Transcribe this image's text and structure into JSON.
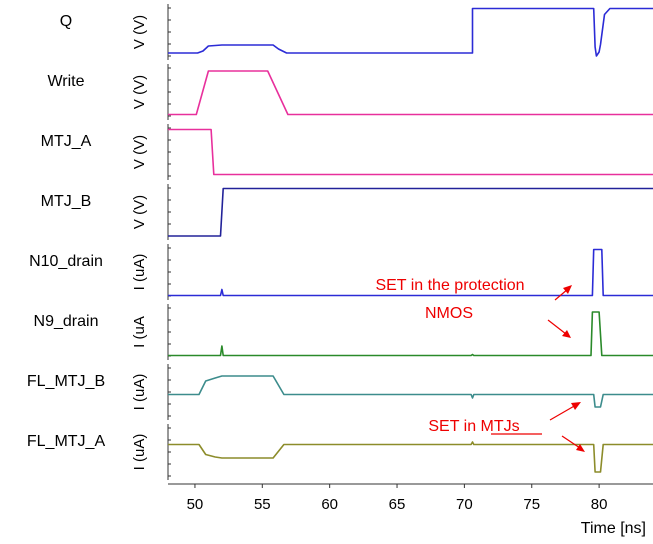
{
  "chart_data": {
    "type": "line",
    "xlabel": "Time [ns]",
    "x_unit_range": [
      48,
      84
    ],
    "x_ticks": [
      50,
      55,
      60,
      65,
      70,
      75,
      80
    ],
    "grid": false,
    "signals": [
      {
        "name": "Q",
        "unit": "V (V)",
        "color": "#2b2bd6",
        "points": [
          [
            48,
            0.08
          ],
          [
            50.2,
            0.08
          ],
          [
            50.6,
            0.12
          ],
          [
            51.0,
            0.22
          ],
          [
            51.5,
            0.23
          ],
          [
            52.0,
            0.24
          ],
          [
            55.8,
            0.24
          ],
          [
            56.2,
            0.16
          ],
          [
            56.8,
            0.08
          ],
          [
            70.6,
            0.08
          ],
          [
            70.6,
            0.97
          ],
          [
            79.6,
            0.97
          ],
          [
            79.7,
            0.2
          ],
          [
            79.8,
            0.02
          ],
          [
            80.0,
            0.1
          ],
          [
            80.1,
            0.25
          ],
          [
            80.4,
            0.85
          ],
          [
            80.8,
            0.97
          ],
          [
            84,
            0.97
          ]
        ]
      },
      {
        "name": "Write",
        "unit": "V (V)",
        "color": "#e8309c",
        "points": [
          [
            48,
            0.05
          ],
          [
            50.1,
            0.05
          ],
          [
            51.0,
            0.92
          ],
          [
            55.4,
            0.92
          ],
          [
            56.9,
            0.05
          ],
          [
            84,
            0.05
          ]
        ]
      },
      {
        "name": "MTJ_A",
        "unit": "V (V)",
        "color": "#e8309c",
        "points": [
          [
            48,
            0.95
          ],
          [
            51.2,
            0.95
          ],
          [
            51.4,
            0.05
          ],
          [
            84,
            0.05
          ]
        ]
      },
      {
        "name": "MTJ_B",
        "unit": "V (V)",
        "color": "#222299",
        "points": [
          [
            48,
            0.02
          ],
          [
            51.9,
            0.02
          ],
          [
            52.1,
            0.97
          ],
          [
            84,
            0.97
          ]
        ]
      },
      {
        "name": "N10_drain",
        "unit": "I (uA)",
        "color": "#2b2bd6",
        "points": [
          [
            48,
            0.03
          ],
          [
            51.9,
            0.03
          ],
          [
            52.0,
            0.15
          ],
          [
            52.1,
            0.03
          ],
          [
            79.5,
            0.03
          ],
          [
            79.6,
            0.95
          ],
          [
            80.2,
            0.95
          ],
          [
            80.3,
            0.03
          ],
          [
            84,
            0.03
          ]
        ]
      },
      {
        "name": "N9_drain",
        "unit": "I (uA",
        "color": "#2a8a2a",
        "points": [
          [
            48,
            0.03
          ],
          [
            51.9,
            0.03
          ],
          [
            52.0,
            0.22
          ],
          [
            52.1,
            0.03
          ],
          [
            70.5,
            0.03
          ],
          [
            70.6,
            0.05
          ],
          [
            70.7,
            0.03
          ],
          [
            79.4,
            0.03
          ],
          [
            79.5,
            0.9
          ],
          [
            80.0,
            0.9
          ],
          [
            80.2,
            0.03
          ],
          [
            84,
            0.03
          ]
        ]
      },
      {
        "name": "FL_MTJ_B",
        "unit": "I (uA)",
        "color": "#3c8c8c",
        "points": [
          [
            48,
            0.45
          ],
          [
            50.3,
            0.45
          ],
          [
            50.8,
            0.72
          ],
          [
            51.5,
            0.78
          ],
          [
            52.0,
            0.82
          ],
          [
            55.8,
            0.82
          ],
          [
            56.6,
            0.45
          ],
          [
            70.5,
            0.45
          ],
          [
            70.6,
            0.38
          ],
          [
            70.7,
            0.45
          ],
          [
            79.6,
            0.45
          ],
          [
            79.7,
            0.2
          ],
          [
            80.1,
            0.2
          ],
          [
            80.3,
            0.45
          ],
          [
            84,
            0.45
          ]
        ]
      },
      {
        "name": "FL_MTJ_A",
        "unit": "I (uA)",
        "color": "#8c8c2a",
        "points": [
          [
            48,
            0.65
          ],
          [
            50.3,
            0.65
          ],
          [
            50.8,
            0.45
          ],
          [
            51.5,
            0.4
          ],
          [
            52.0,
            0.38
          ],
          [
            55.8,
            0.38
          ],
          [
            56.6,
            0.65
          ],
          [
            70.5,
            0.65
          ],
          [
            70.6,
            0.7
          ],
          [
            70.7,
            0.65
          ],
          [
            79.6,
            0.65
          ],
          [
            79.7,
            0.1
          ],
          [
            80.1,
            0.1
          ],
          [
            80.3,
            0.65
          ],
          [
            84,
            0.65
          ]
        ]
      }
    ],
    "annotations": [
      {
        "text": "SET in the protection"
      },
      {
        "text": "NMOS"
      },
      {
        "text": "SET in MTJs"
      }
    ]
  }
}
